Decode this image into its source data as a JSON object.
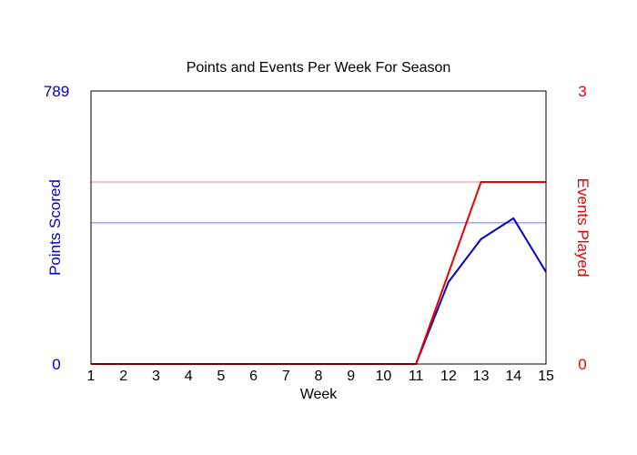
{
  "chart_data": {
    "type": "line",
    "title": "Points and Events Per Week For Season",
    "xlabel": "Week",
    "ylabel_left": "Points Scored",
    "ylabel_right": "Events Played",
    "x": [
      1,
      2,
      3,
      4,
      5,
      6,
      7,
      8,
      9,
      10,
      11,
      12,
      13,
      14,
      15
    ],
    "xlim": [
      1,
      15
    ],
    "ylim_left": [
      0,
      789
    ],
    "ylim_right": [
      0,
      3
    ],
    "left_ticks": [
      "789",
      "0"
    ],
    "right_ticks": [
      "3",
      "0"
    ],
    "grid": false,
    "series": [
      {
        "axis": "left",
        "color": "#0000cc",
        "values": [
          0,
          0,
          0,
          0,
          0,
          0,
          0,
          0,
          0,
          0,
          0,
          237,
          361,
          421,
          266
        ]
      },
      {
        "axis": "right",
        "color": "#ee0000",
        "values": [
          0,
          0,
          0,
          0,
          0,
          0,
          0,
          0,
          0,
          0,
          0,
          1,
          2,
          2,
          2
        ]
      }
    ],
    "reference_lines": [
      {
        "axis": "left",
        "value": 408,
        "color": "#7777cc"
      },
      {
        "axis": "right",
        "value": 2,
        "color": "#ee8888"
      }
    ]
  }
}
